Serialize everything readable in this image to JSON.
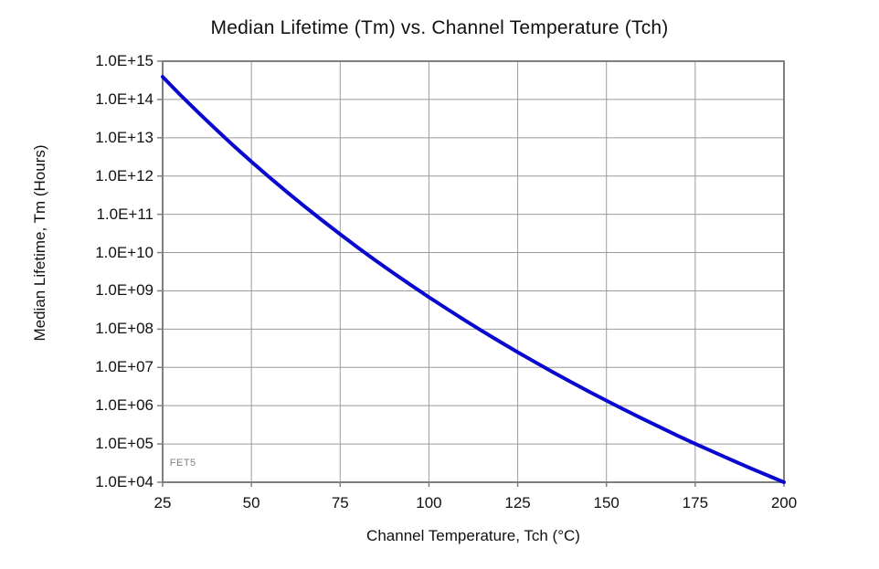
{
  "chart_data": {
    "type": "line",
    "title": "Median Lifetime (Tm) vs. Channel Temperature (Tch)",
    "xlabel": "Channel Temperature, Tch  (°C)",
    "ylabel": "Median Lifetime, Tm  (Hours)",
    "x_scale": "linear",
    "y_scale": "log",
    "xlim": [
      25,
      200
    ],
    "ylim": [
      10000.0,
      1000000000000000.0
    ],
    "x_ticks": [
      25,
      50,
      75,
      100,
      125,
      150,
      175,
      200
    ],
    "y_tick_labels": [
      "1.0E+04",
      "1.0E+05",
      "1.0E+06",
      "1.0E+07",
      "1.0E+08",
      "1.0E+09",
      "1.0E+10",
      "1.0E+11",
      "1.0E+12",
      "1.0E+13",
      "1.0E+14",
      "1.0E+15"
    ],
    "grid": true,
    "legend": "none",
    "annotation": {
      "text": "FET5",
      "x": 27,
      "y": 32000
    },
    "colors": {
      "line": "#0808d0",
      "grid": "#9a9a9a",
      "border": "#7f7f7f",
      "text": "#111111",
      "annotation": "#808080"
    },
    "series": [
      {
        "name": "FET5",
        "x": [
          25,
          30,
          35,
          40,
          45,
          50,
          55,
          60,
          65,
          70,
          75,
          80,
          85,
          90,
          95,
          100,
          105,
          110,
          115,
          120,
          125,
          130,
          135,
          140,
          145,
          150,
          155,
          160,
          165,
          170,
          175,
          180,
          185,
          190,
          195,
          200
        ],
        "y": [
          390000000000000.0,
          131000000000000.0,
          45800000000000.0,
          16600000000000.0,
          6160000000000.0,
          2370000000000.0,
          939000000000.0,
          382000000000.0,
          160000000000.0,
          68400000000.0,
          30100000000.0,
          13500000000.0,
          6210000000.0,
          2920000000.0,
          1400000000.0,
          684000000.0,
          341000000.0,
          173000000.0,
          89400000.0,
          46900000.0,
          25000000.0,
          13600000.0,
          7470000.0,
          4170000.0,
          2360000.0,
          1360000.0,
          788000.0,
          464000.0,
          276000.0,
          166000.0,
          101000.0,
          62600.0,
          39000.0,
          24500.0,
          15600.0,
          10000.0
        ]
      }
    ]
  }
}
